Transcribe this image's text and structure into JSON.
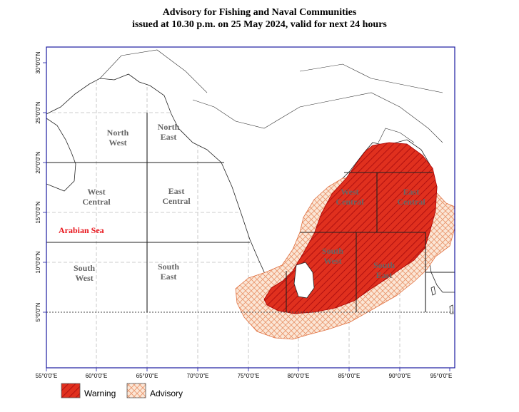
{
  "header": {
    "title_line1": "Advisory for Fishing and Naval Communities",
    "title_line2": "issued at 10.30 p.m.  on 25 May 2024, valid for next 24 hours"
  },
  "map": {
    "longitude_ticks": [
      "55°0'0\"E",
      "60°0'0\"E",
      "65°0'0\"E",
      "70°0'0\"E",
      "75°0'0\"E",
      "80°0'0\"E",
      "85°0'0\"E",
      "90°0'0\"E",
      "95°0'0\"E"
    ],
    "latitude_ticks": [
      "5°0'0\"N",
      "10°0'0\"N",
      "15°0'0\"N",
      "20°0'0\"N",
      "25°0'0\"N",
      "30°0'0\"N"
    ],
    "regions": [
      {
        "id": "north-west",
        "line1": "North",
        "line2": "West"
      },
      {
        "id": "north-east",
        "line1": "North",
        "line2": "East"
      },
      {
        "id": "west-central",
        "line1": "West",
        "line2": "Central"
      },
      {
        "id": "east-central",
        "line1": "East",
        "line2": "Central"
      },
      {
        "id": "south-west",
        "line1": "South",
        "line2": "West"
      },
      {
        "id": "south-east",
        "line1": "South",
        "line2": "East"
      },
      {
        "id": "bay-west-central",
        "line1": "West",
        "line2": "Central"
      },
      {
        "id": "bay-east-central",
        "line1": "East",
        "line2": "Central"
      },
      {
        "id": "bay-south-west",
        "line1": "South",
        "line2": "West"
      },
      {
        "id": "bay-south-east",
        "line1": "South",
        "line2": "East"
      }
    ],
    "sea_label": "Arabian Sea",
    "colors": {
      "warning": "#e0301e",
      "advisory": "#f7c9a8",
      "sea_label": "#e8141b",
      "region_text": "#666666",
      "frame": "#1a1aa0"
    }
  },
  "legend": {
    "warning_label": "Warning",
    "advisory_label": "Advisory"
  }
}
